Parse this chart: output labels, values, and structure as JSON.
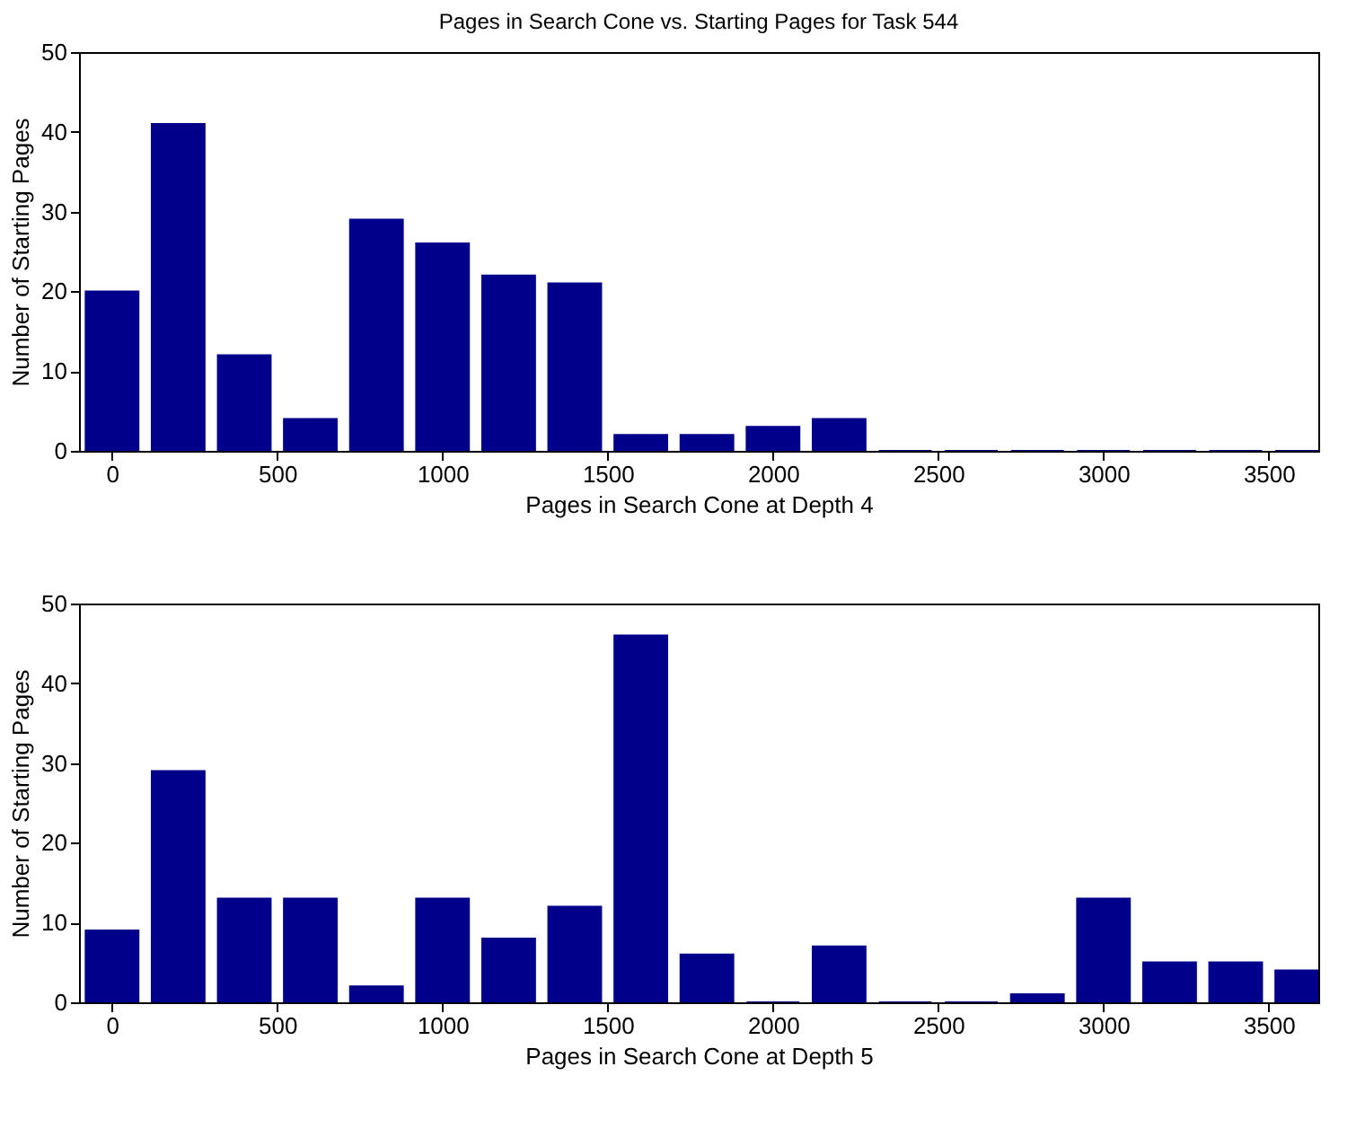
{
  "chart_data": [
    {
      "type": "bar",
      "title": "Pages in Search Cone vs. Starting Pages for Task 544",
      "xlabel": "Pages in Search Cone at Depth 4",
      "ylabel": "Number of Starting Pages",
      "x": [
        0,
        200,
        400,
        600,
        800,
        1000,
        1200,
        1400,
        1600,
        1800,
        2000,
        2200,
        2400,
        2600,
        2800,
        3000,
        3200,
        3400,
        3600
      ],
      "values": [
        20,
        41,
        12,
        4,
        29,
        26,
        22,
        21,
        2,
        2,
        3,
        4,
        0,
        0,
        0,
        0,
        0,
        0,
        0
      ],
      "color": "#00008b",
      "xlim": [
        -100,
        3650
      ],
      "xticks": [
        0,
        500,
        1000,
        1500,
        2000,
        2500,
        3000,
        3500
      ],
      "ylim": [
        0,
        50
      ],
      "yticks": [
        0,
        10,
        20,
        30,
        40,
        50
      ]
    },
    {
      "type": "bar",
      "xlabel": "Pages in Search Cone at Depth 5",
      "ylabel": "Number of Starting Pages",
      "x": [
        0,
        200,
        400,
        600,
        800,
        1000,
        1200,
        1400,
        1600,
        1800,
        2000,
        2200,
        2400,
        2600,
        2800,
        3000,
        3200,
        3400,
        3600
      ],
      "values": [
        9,
        29,
        13,
        13,
        2,
        13,
        8,
        12,
        46,
        6,
        0,
        7,
        0,
        0,
        1,
        13,
        5,
        5,
        4
      ],
      "color": "#00008b",
      "xlim": [
        -100,
        3650
      ],
      "xticks": [
        0,
        500,
        1000,
        1500,
        2000,
        2500,
        3000,
        3500
      ],
      "ylim": [
        0,
        50
      ],
      "yticks": [
        0,
        10,
        20,
        30,
        40,
        50
      ]
    }
  ]
}
